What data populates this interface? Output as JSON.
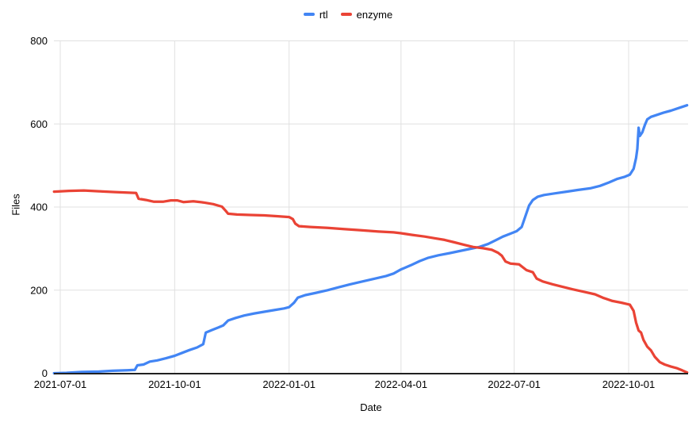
{
  "page": {
    "background": "#ffffff"
  },
  "chart_data": {
    "type": "line",
    "title": "",
    "xlabel": "Date",
    "ylabel": "Files",
    "ylim": [
      0,
      800
    ],
    "grid": true,
    "legend_position": "top-center",
    "grid_color": "#e0e0e0",
    "axis_line_color": "#212121",
    "text_color": "#000000",
    "y_ticks": [
      "0",
      "200",
      "400",
      "600",
      "800"
    ],
    "x_ticks": [
      "2021-07-01",
      "2021-10-01",
      "2022-01-01",
      "2022-04-01",
      "2022-07-01",
      "2022-10-01"
    ],
    "series": [
      {
        "name": "rtl",
        "color": "#4285F4",
        "points": [
          [
            "2021-06-26",
            0
          ],
          [
            "2021-07-06",
            1
          ],
          [
            "2021-07-18",
            3
          ],
          [
            "2021-08-01",
            4
          ],
          [
            "2021-08-12",
            6
          ],
          [
            "2021-08-24",
            7
          ],
          [
            "2021-08-30",
            8
          ],
          [
            "2021-09-01",
            19
          ],
          [
            "2021-09-06",
            21
          ],
          [
            "2021-09-11",
            28
          ],
          [
            "2021-09-17",
            31
          ],
          [
            "2021-09-24",
            36
          ],
          [
            "2021-10-01",
            42
          ],
          [
            "2021-10-07",
            49
          ],
          [
            "2021-10-13",
            56
          ],
          [
            "2021-10-19",
            62
          ],
          [
            "2021-10-24",
            70
          ],
          [
            "2021-10-26",
            98
          ],
          [
            "2021-10-31",
            104
          ],
          [
            "2021-11-05",
            110
          ],
          [
            "2021-11-09",
            115
          ],
          [
            "2021-11-13",
            127
          ],
          [
            "2021-11-19",
            133
          ],
          [
            "2021-11-26",
            139
          ],
          [
            "2021-12-04",
            144
          ],
          [
            "2021-12-12",
            148
          ],
          [
            "2021-12-20",
            152
          ],
          [
            "2021-12-28",
            156
          ],
          [
            "2022-01-01",
            159
          ],
          [
            "2022-01-05",
            170
          ],
          [
            "2022-01-08",
            182
          ],
          [
            "2022-01-14",
            188
          ],
          [
            "2022-01-22",
            193
          ],
          [
            "2022-02-01",
            200
          ],
          [
            "2022-02-10",
            207
          ],
          [
            "2022-02-19",
            214
          ],
          [
            "2022-03-01",
            221
          ],
          [
            "2022-03-10",
            227
          ],
          [
            "2022-03-20",
            234
          ],
          [
            "2022-03-26",
            240
          ],
          [
            "2022-04-01",
            250
          ],
          [
            "2022-04-09",
            260
          ],
          [
            "2022-04-16",
            270
          ],
          [
            "2022-04-23",
            278
          ],
          [
            "2022-05-01",
            284
          ],
          [
            "2022-05-10",
            289
          ],
          [
            "2022-05-18",
            294
          ],
          [
            "2022-05-26",
            299
          ],
          [
            "2022-06-03",
            304
          ],
          [
            "2022-06-10",
            311
          ],
          [
            "2022-06-16",
            320
          ],
          [
            "2022-06-22",
            329
          ],
          [
            "2022-06-28",
            336
          ],
          [
            "2022-07-03",
            342
          ],
          [
            "2022-07-07",
            352
          ],
          [
            "2022-07-10",
            378
          ],
          [
            "2022-07-13",
            404
          ],
          [
            "2022-07-16",
            417
          ],
          [
            "2022-07-20",
            425
          ],
          [
            "2022-07-25",
            429
          ],
          [
            "2022-08-03",
            433
          ],
          [
            "2022-08-12",
            437
          ],
          [
            "2022-08-21",
            441
          ],
          [
            "2022-08-31",
            445
          ],
          [
            "2022-09-08",
            451
          ],
          [
            "2022-09-15",
            459
          ],
          [
            "2022-09-22",
            468
          ],
          [
            "2022-09-28",
            473
          ],
          [
            "2022-10-02",
            478
          ],
          [
            "2022-10-05",
            492
          ],
          [
            "2022-10-07",
            518
          ],
          [
            "2022-10-08",
            540
          ],
          [
            "2022-10-09",
            591
          ],
          [
            "2022-10-10",
            571
          ],
          [
            "2022-10-12",
            580
          ],
          [
            "2022-10-14",
            597
          ],
          [
            "2022-10-16",
            611
          ],
          [
            "2022-10-19",
            617
          ],
          [
            "2022-10-24",
            622
          ],
          [
            "2022-10-29",
            627
          ],
          [
            "2022-11-04",
            632
          ],
          [
            "2022-11-10",
            638
          ],
          [
            "2022-11-17",
            645
          ]
        ]
      },
      {
        "name": "enzyme",
        "color": "#EA4335",
        "points": [
          [
            "2021-06-26",
            437
          ],
          [
            "2021-07-08",
            439
          ],
          [
            "2021-07-20",
            440
          ],
          [
            "2021-08-01",
            438
          ],
          [
            "2021-08-14",
            436
          ],
          [
            "2021-08-31",
            434
          ],
          [
            "2021-09-02",
            420
          ],
          [
            "2021-09-08",
            417
          ],
          [
            "2021-09-14",
            413
          ],
          [
            "2021-09-22",
            413
          ],
          [
            "2021-09-28",
            416
          ],
          [
            "2021-10-03",
            416
          ],
          [
            "2021-10-08",
            412
          ],
          [
            "2021-10-16",
            414
          ],
          [
            "2021-10-24",
            411
          ],
          [
            "2021-11-01",
            407
          ],
          [
            "2021-11-08",
            401
          ],
          [
            "2021-11-11",
            391
          ],
          [
            "2021-11-13",
            384
          ],
          [
            "2021-11-20",
            382
          ],
          [
            "2021-12-01",
            381
          ],
          [
            "2021-12-12",
            380
          ],
          [
            "2021-12-22",
            378
          ],
          [
            "2022-01-01",
            376
          ],
          [
            "2022-01-04",
            371
          ],
          [
            "2022-01-06",
            360
          ],
          [
            "2022-01-09",
            354
          ],
          [
            "2022-01-18",
            352
          ],
          [
            "2022-02-01",
            350
          ],
          [
            "2022-02-14",
            347
          ],
          [
            "2022-02-28",
            344
          ],
          [
            "2022-03-14",
            341
          ],
          [
            "2022-03-26",
            339
          ],
          [
            "2022-04-01",
            337
          ],
          [
            "2022-04-10",
            333
          ],
          [
            "2022-04-20",
            329
          ],
          [
            "2022-04-28",
            325
          ],
          [
            "2022-05-06",
            321
          ],
          [
            "2022-05-14",
            315
          ],
          [
            "2022-05-22",
            309
          ],
          [
            "2022-05-29",
            304
          ],
          [
            "2022-06-06",
            301
          ],
          [
            "2022-06-13",
            297
          ],
          [
            "2022-06-18",
            290
          ],
          [
            "2022-06-21",
            283
          ],
          [
            "2022-06-24",
            269
          ],
          [
            "2022-06-28",
            264
          ],
          [
            "2022-07-05",
            262
          ],
          [
            "2022-07-11",
            248
          ],
          [
            "2022-07-16",
            243
          ],
          [
            "2022-07-19",
            228
          ],
          [
            "2022-07-24",
            221
          ],
          [
            "2022-08-01",
            214
          ],
          [
            "2022-08-09",
            208
          ],
          [
            "2022-08-17",
            202
          ],
          [
            "2022-08-26",
            196
          ],
          [
            "2022-09-04",
            190
          ],
          [
            "2022-09-11",
            181
          ],
          [
            "2022-09-18",
            174
          ],
          [
            "2022-09-25",
            170
          ],
          [
            "2022-10-02",
            165
          ],
          [
            "2022-10-05",
            150
          ],
          [
            "2022-10-07",
            122
          ],
          [
            "2022-10-09",
            103
          ],
          [
            "2022-10-11",
            98
          ],
          [
            "2022-10-13",
            80
          ],
          [
            "2022-10-16",
            64
          ],
          [
            "2022-10-19",
            55
          ],
          [
            "2022-10-22",
            40
          ],
          [
            "2022-10-26",
            27
          ],
          [
            "2022-10-30",
            21
          ],
          [
            "2022-11-04",
            16
          ],
          [
            "2022-11-09",
            12
          ],
          [
            "2022-11-13",
            7
          ],
          [
            "2022-11-16",
            3
          ],
          [
            "2022-11-17",
            2
          ]
        ]
      }
    ]
  }
}
